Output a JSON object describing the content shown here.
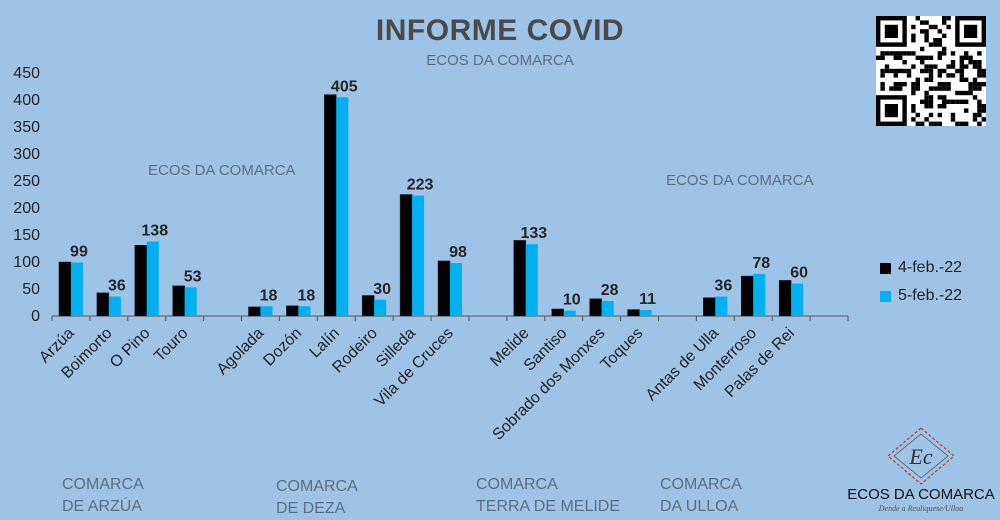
{
  "title": "INFORME COVID",
  "subtitle": "ECOS DA COMARCA",
  "watermarks": [
    "ECOS DA COMARCA",
    "ECOS DA COMARCA"
  ],
  "logo": {
    "name": "ECOS DA COMARCA",
    "tagline": "Dende a Reuliquese/Ulloa",
    "mark": "Ec"
  },
  "colors": {
    "background": "#9dc3e6",
    "series1": "#000000",
    "series2": "#00b0f0"
  },
  "groups": [
    {
      "label": "COMARCA\nDE ARZÚA"
    },
    {
      "label": "COMARCA\nDE DEZA"
    },
    {
      "label": "COMARCA\nTERRA DE MELIDE"
    },
    {
      "label": "COMARCA\nDA ULLOA"
    }
  ],
  "chart_data": {
    "type": "bar",
    "title": "INFORME COVID",
    "subtitle": "ECOS DA COMARCA",
    "categories": [
      "Arzúa",
      "Boimorto",
      "O Pino",
      "Touro",
      "",
      "Agolada",
      "Dozón",
      "Lalín",
      "Rodeiro",
      "Silleda",
      "Vila de Cruces",
      "",
      "Melide",
      "Santiso",
      "Sobrado dos Monxes",
      "Toques",
      "",
      "Antas de Ulla",
      "Monterroso",
      "Palas de Rei",
      ""
    ],
    "series": [
      {
        "name": "4-feb.-22",
        "values": [
          100,
          43,
          131,
          56,
          null,
          17,
          19,
          410,
          38,
          225,
          102,
          null,
          140,
          13,
          32,
          12,
          null,
          34,
          74,
          66,
          null
        ]
      },
      {
        "name": "5-feb.-22",
        "values": [
          99,
          36,
          138,
          53,
          null,
          18,
          18,
          405,
          30,
          223,
          98,
          null,
          133,
          10,
          28,
          11,
          null,
          36,
          78,
          60,
          null
        ]
      }
    ],
    "data_labels": [
      "99",
      "36",
      "138",
      "53",
      "",
      "18",
      "18",
      "405",
      "30",
      "223",
      "98",
      "",
      "133",
      "10",
      "28",
      "11",
      "",
      "36",
      "78",
      "60",
      ""
    ],
    "yticks": [
      0,
      50,
      100,
      150,
      200,
      250,
      300,
      350,
      400,
      450
    ],
    "ylim": [
      0,
      450
    ],
    "legend": "right",
    "grid": false
  }
}
